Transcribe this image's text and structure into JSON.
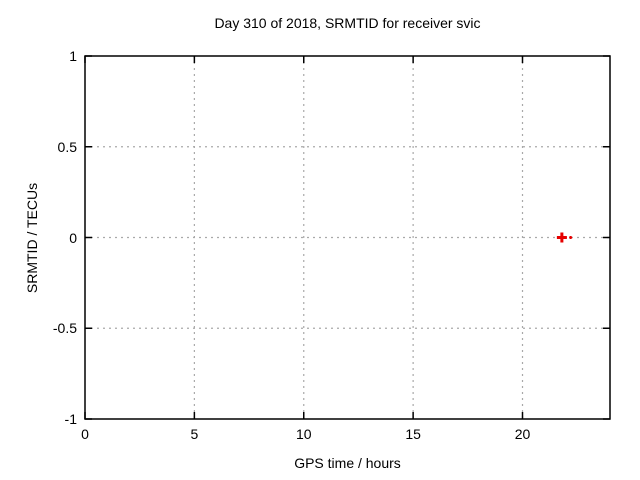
{
  "chart_data": {
    "type": "scatter",
    "title": "Day 310 of 2018, SRMTID for receiver svic",
    "xlabel": "GPS time / hours",
    "ylabel": "SRMTID / TECUs",
    "xlim": [
      0,
      24
    ],
    "ylim": [
      -1,
      1
    ],
    "x_ticks": [
      {
        "value": 0,
        "label": "0"
      },
      {
        "value": 5,
        "label": "5"
      },
      {
        "value": 10,
        "label": "10"
      },
      {
        "value": 15,
        "label": "15"
      },
      {
        "value": 20,
        "label": "20"
      }
    ],
    "y_ticks": [
      {
        "value": -1,
        "label": "-1"
      },
      {
        "value": -0.5,
        "label": "-0.5"
      },
      {
        "value": 0,
        "label": "0"
      },
      {
        "value": 0.5,
        "label": "0.5"
      },
      {
        "value": 1,
        "label": "1"
      }
    ],
    "grid": true,
    "legend": "none",
    "series": [
      {
        "name": "SRMTID",
        "marker": "plus",
        "color": "#e60000",
        "points": [
          {
            "x": 21.8,
            "y": 0.0,
            "size": 10
          },
          {
            "x": 22.2,
            "y": 0.0,
            "size": 3
          }
        ]
      }
    ]
  },
  "colors": {
    "background": "#ffffff",
    "axis_box": "#000000",
    "grid": "#a9a9a9",
    "text": "#000000",
    "marker": "#e60000"
  }
}
